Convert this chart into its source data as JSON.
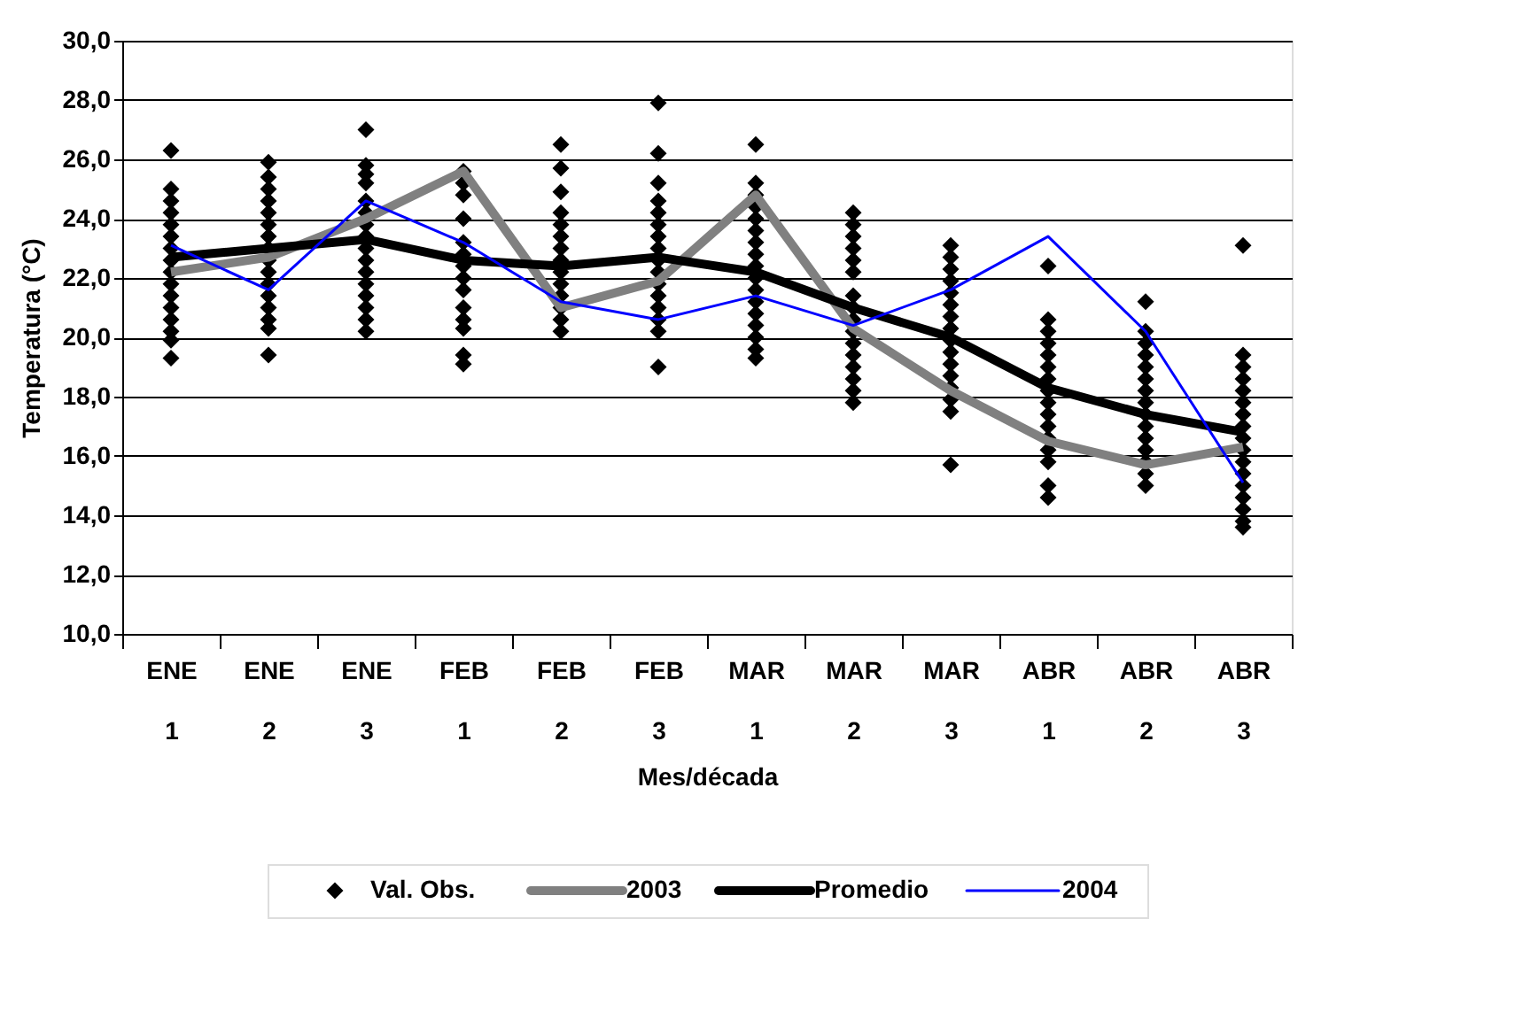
{
  "chart_data": {
    "type": "line",
    "xlabel": "Mes/década",
    "ylabel": "Temperatura (°C)",
    "categories": [
      "ENE 1",
      "ENE 2",
      "ENE 3",
      "FEB 1",
      "FEB 2",
      "FEB 3",
      "MAR 1",
      "MAR 2",
      "MAR 3",
      "ABR 1",
      "ABR 2",
      "ABR 3"
    ],
    "ylim": [
      10,
      30
    ],
    "yticks": [
      {
        "value": 10,
        "label": "10,0"
      },
      {
        "value": 12,
        "label": "12,0"
      },
      {
        "value": 14,
        "label": "14,0"
      },
      {
        "value": 16,
        "label": "16,0"
      },
      {
        "value": 18,
        "label": "18,0"
      },
      {
        "value": 20,
        "label": "20,0"
      },
      {
        "value": 22,
        "label": "22,0"
      },
      {
        "value": 24,
        "label": "24,0"
      },
      {
        "value": 26,
        "label": "26,0"
      },
      {
        "value": 28,
        "label": "28,0"
      },
      {
        "value": 30,
        "label": "30,0"
      }
    ],
    "grid": "y",
    "legend": "bottom",
    "series": [
      {
        "name": "Val. Obs.",
        "type": "scatter",
        "marker": "diamond",
        "color": "#000000",
        "x": [
          "ENE 1",
          "ENE 1",
          "ENE 1",
          "ENE 1",
          "ENE 1",
          "ENE 1",
          "ENE 1",
          "ENE 1",
          "ENE 1",
          "ENE 1",
          "ENE 1",
          "ENE 1",
          "ENE 1",
          "ENE 1",
          "ENE 1",
          "ENE 1",
          "ENE 2",
          "ENE 2",
          "ENE 2",
          "ENE 2",
          "ENE 2",
          "ENE 2",
          "ENE 2",
          "ENE 2",
          "ENE 2",
          "ENE 2",
          "ENE 2",
          "ENE 2",
          "ENE 2",
          "ENE 2",
          "ENE 2",
          "ENE 2",
          "ENE 3",
          "ENE 3",
          "ENE 3",
          "ENE 3",
          "ENE 3",
          "ENE 3",
          "ENE 3",
          "ENE 3",
          "ENE 3",
          "ENE 3",
          "ENE 3",
          "ENE 3",
          "ENE 3",
          "ENE 3",
          "ENE 3",
          "ENE 3",
          "FEB 1",
          "FEB 1",
          "FEB 1",
          "FEB 1",
          "FEB 1",
          "FEB 1",
          "FEB 1",
          "FEB 1",
          "FEB 1",
          "FEB 1",
          "FEB 1",
          "FEB 1",
          "FEB 1",
          "FEB 1",
          "FEB 2",
          "FEB 2",
          "FEB 2",
          "FEB 2",
          "FEB 2",
          "FEB 2",
          "FEB 2",
          "FEB 2",
          "FEB 2",
          "FEB 2",
          "FEB 2",
          "FEB 2",
          "FEB 2",
          "FEB 2",
          "FEB 3",
          "FEB 3",
          "FEB 3",
          "FEB 3",
          "FEB 3",
          "FEB 3",
          "FEB 3",
          "FEB 3",
          "FEB 3",
          "FEB 3",
          "FEB 3",
          "FEB 3",
          "FEB 3",
          "FEB 3",
          "FEB 3",
          "FEB 3",
          "MAR 1",
          "MAR 1",
          "MAR 1",
          "MAR 1",
          "MAR 1",
          "MAR 1",
          "MAR 1",
          "MAR 1",
          "MAR 1",
          "MAR 1",
          "MAR 1",
          "MAR 1",
          "MAR 1",
          "MAR 1",
          "MAR 1",
          "MAR 1",
          "MAR 1",
          "MAR 2",
          "MAR 2",
          "MAR 2",
          "MAR 2",
          "MAR 2",
          "MAR 2",
          "MAR 2",
          "MAR 2",
          "MAR 2",
          "MAR 2",
          "MAR 2",
          "MAR 2",
          "MAR 2",
          "MAR 2",
          "MAR 2",
          "MAR 2",
          "MAR 3",
          "MAR 3",
          "MAR 3",
          "MAR 3",
          "MAR 3",
          "MAR 3",
          "MAR 3",
          "MAR 3",
          "MAR 3",
          "MAR 3",
          "MAR 3",
          "MAR 3",
          "MAR 3",
          "MAR 3",
          "MAR 3",
          "MAR 3",
          "ABR 1",
          "ABR 1",
          "ABR 1",
          "ABR 1",
          "ABR 1",
          "ABR 1",
          "ABR 1",
          "ABR 1",
          "ABR 1",
          "ABR 1",
          "ABR 1",
          "ABR 1",
          "ABR 1",
          "ABR 1",
          "ABR 1",
          "ABR 1",
          "ABR 2",
          "ABR 2",
          "ABR 2",
          "ABR 2",
          "ABR 2",
          "ABR 2",
          "ABR 2",
          "ABR 2",
          "ABR 2",
          "ABR 2",
          "ABR 2",
          "ABR 2",
          "ABR 2",
          "ABR 2",
          "ABR 2",
          "ABR 3",
          "ABR 3",
          "ABR 3",
          "ABR 3",
          "ABR 3",
          "ABR 3",
          "ABR 3",
          "ABR 3",
          "ABR 3",
          "ABR 3",
          "ABR 3",
          "ABR 3",
          "ABR 3",
          "ABR 3",
          "ABR 3",
          "ABR 3",
          "ABR 3"
        ],
        "values": [
          26.3,
          25.0,
          24.6,
          24.2,
          23.8,
          23.4,
          23.0,
          22.6,
          22.2,
          21.8,
          21.4,
          21.0,
          20.6,
          20.2,
          19.9,
          19.3,
          25.9,
          25.4,
          25.0,
          24.6,
          24.2,
          23.8,
          23.4,
          23.0,
          22.6,
          22.2,
          21.8,
          21.4,
          21.0,
          20.6,
          20.3,
          19.4,
          27.0,
          25.8,
          25.5,
          25.2,
          24.6,
          24.2,
          23.8,
          23.4,
          23.0,
          22.6,
          22.2,
          21.8,
          21.4,
          21.0,
          20.6,
          20.2,
          25.6,
          25.2,
          24.8,
          24.0,
          23.2,
          22.8,
          22.4,
          22.0,
          21.6,
          21.0,
          20.6,
          20.3,
          19.4,
          19.1,
          26.5,
          25.7,
          24.9,
          24.2,
          23.8,
          23.4,
          23.0,
          22.6,
          22.2,
          21.8,
          21.4,
          21.0,
          20.6,
          20.2,
          27.9,
          26.2,
          25.2,
          24.6,
          24.2,
          23.8,
          23.4,
          23.0,
          22.6,
          22.2,
          21.8,
          21.4,
          21.0,
          20.6,
          20.2,
          19.0,
          26.5,
          25.2,
          24.8,
          24.4,
          24.0,
          23.6,
          23.2,
          22.8,
          22.4,
          22.0,
          21.6,
          21.2,
          20.8,
          20.4,
          20.0,
          19.6,
          19.3,
          24.2,
          23.8,
          23.4,
          23.0,
          22.6,
          22.2,
          21.4,
          21.0,
          20.6,
          20.2,
          19.8,
          19.4,
          19.0,
          18.6,
          18.2,
          17.8,
          23.1,
          22.7,
          22.3,
          21.9,
          21.5,
          21.1,
          20.7,
          20.3,
          19.9,
          19.5,
          19.1,
          18.7,
          18.3,
          17.9,
          17.5,
          15.7,
          22.4,
          20.6,
          20.2,
          19.8,
          19.4,
          19.0,
          18.6,
          18.2,
          17.8,
          17.4,
          17.0,
          16.6,
          16.2,
          15.8,
          15.0,
          14.6,
          21.2,
          20.2,
          19.8,
          19.4,
          19.0,
          18.6,
          18.2,
          17.8,
          17.4,
          17.0,
          16.6,
          16.2,
          15.8,
          15.4,
          15.0,
          23.1,
          19.4,
          19.0,
          18.6,
          18.2,
          17.8,
          17.4,
          17.0,
          16.6,
          16.2,
          15.8,
          15.4,
          15.0,
          14.6,
          14.2,
          13.8,
          13.6
        ]
      },
      {
        "name": "2003",
        "color": "#808080",
        "values": [
          22.2,
          22.7,
          24.0,
          25.6,
          21.0,
          21.9,
          24.8,
          20.3,
          18.2,
          16.5,
          15.7,
          16.3
        ]
      },
      {
        "name": "Promedio",
        "color": "#000000",
        "values": [
          22.7,
          23.0,
          23.3,
          22.6,
          22.4,
          22.7,
          22.2,
          21.0,
          20.0,
          18.3,
          17.4,
          16.8
        ]
      },
      {
        "name": "2004",
        "color": "#0000ff",
        "values": [
          23.1,
          21.6,
          24.6,
          23.2,
          21.2,
          20.6,
          21.4,
          20.4,
          21.6,
          23.4,
          20.2,
          15.1
        ]
      }
    ]
  }
}
